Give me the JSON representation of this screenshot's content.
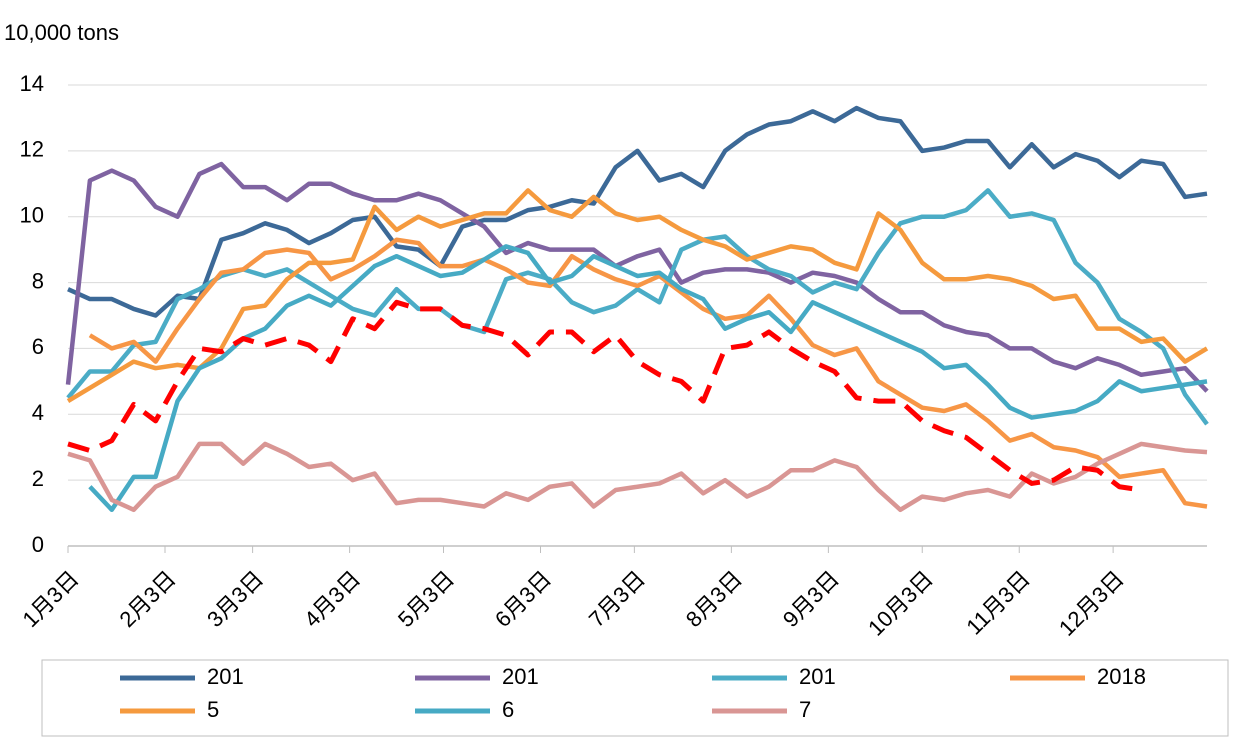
{
  "chart_data": {
    "type": "line",
    "y_label": "10,000 tons",
    "x": [
      0,
      7,
      14,
      21,
      28,
      35,
      42,
      49,
      56,
      63,
      70,
      77,
      84,
      91,
      98,
      105,
      112,
      119,
      126,
      133,
      140,
      147,
      154,
      161,
      168,
      175,
      182,
      189,
      196,
      203,
      210,
      217,
      224,
      231,
      238,
      245,
      252,
      259,
      266,
      273,
      280,
      287,
      294,
      301,
      308,
      315,
      322,
      329,
      336,
      343,
      350,
      357,
      364
    ],
    "xlim": [
      0,
      364
    ],
    "xticks": [
      {
        "value": 0,
        "label": "1月3日"
      },
      {
        "value": 31,
        "label": "2月3日"
      },
      {
        "value": 59,
        "label": "3月3日"
      },
      {
        "value": 90,
        "label": "4月3日"
      },
      {
        "value": 120,
        "label": "5月3日"
      },
      {
        "value": 151,
        "label": "6月3日"
      },
      {
        "value": 181,
        "label": "7月3日"
      },
      {
        "value": 212,
        "label": "8月3日"
      },
      {
        "value": 243,
        "label": "9月3日"
      },
      {
        "value": 273,
        "label": "10月3日"
      },
      {
        "value": 304,
        "label": "11月3日"
      },
      {
        "value": 334,
        "label": "12月3日"
      }
    ],
    "ylim": [
      0,
      14
    ],
    "yticks": [
      0,
      2,
      4,
      6,
      8,
      10,
      12,
      14
    ],
    "series": [
      {
        "name": "201",
        "color": "#3c6997",
        "values": [
          7.8,
          7.5,
          7.5,
          7.2,
          7.0,
          7.6,
          7.5,
          9.3,
          9.5,
          9.8,
          9.6,
          9.2,
          9.5,
          9.9,
          10.0,
          9.1,
          9.0,
          8.5,
          9.7,
          9.9,
          9.9,
          10.2,
          10.3,
          10.5,
          10.4,
          11.5,
          12.0,
          11.1,
          11.3,
          10.9,
          12.0,
          12.5,
          12.8,
          12.9,
          13.2,
          12.9,
          13.3,
          13.0,
          12.9,
          12.0,
          12.1,
          12.3,
          12.3,
          11.5,
          12.2,
          11.5,
          11.9,
          11.7,
          11.2,
          11.7,
          11.6,
          10.6,
          10.7
        ]
      },
      {
        "name": "201",
        "color": "#7f63a1",
        "values": [
          4.9,
          11.1,
          11.4,
          11.1,
          10.3,
          10.0,
          11.3,
          11.6,
          10.9,
          10.9,
          10.5,
          11.0,
          11.0,
          10.7,
          10.5,
          10.5,
          10.7,
          10.5,
          10.1,
          9.7,
          8.9,
          9.2,
          9.0,
          9.0,
          9.0,
          8.5,
          8.8,
          9.0,
          8.0,
          8.3,
          8.4,
          8.4,
          8.3,
          8.0,
          8.3,
          8.2,
          8.0,
          7.5,
          7.1,
          7.1,
          6.7,
          6.5,
          6.4,
          6.0,
          6.0,
          5.6,
          5.4,
          5.7,
          5.5,
          5.2,
          5.3,
          5.4,
          4.7
        ]
      },
      {
        "name": "201",
        "color": "#4bacc6",
        "values": [
          4.5,
          5.3,
          5.3,
          6.1,
          6.2,
          7.5,
          7.8,
          8.2,
          8.4,
          8.2,
          8.4,
          8.0,
          7.6,
          7.2,
          7.0,
          7.8,
          7.2,
          7.2,
          6.7,
          6.5,
          8.1,
          8.3,
          8.1,
          7.4,
          7.1,
          7.3,
          7.8,
          7.4,
          9.0,
          9.3,
          9.4,
          8.8,
          8.4,
          8.2,
          7.7,
          8.0,
          7.8,
          8.9,
          9.8,
          10.0,
          10.0,
          10.2,
          10.8,
          10.0,
          10.1,
          9.9,
          8.6,
          8.0,
          6.9,
          6.5,
          6.0,
          4.6,
          3.7
        ]
      },
      {
        "name": "2018",
        "color": "#f79646",
        "values": [
          null,
          6.4,
          6.0,
          6.2,
          5.6,
          6.6,
          7.5,
          8.3,
          8.4,
          8.9,
          9.0,
          8.9,
          8.1,
          8.4,
          8.8,
          9.3,
          9.2,
          8.5,
          8.5,
          8.7,
          8.4,
          8.0,
          7.9,
          8.8,
          8.4,
          8.1,
          7.9,
          8.2,
          7.7,
          7.2,
          6.9,
          7.0,
          7.6,
          6.9,
          6.1,
          5.8,
          6.0,
          5.0,
          4.6,
          4.2,
          4.1,
          4.3,
          3.8,
          3.2,
          3.4,
          3.0,
          2.9,
          2.7,
          2.1,
          2.2,
          2.3,
          1.3,
          1.2
        ]
      },
      {
        "name": "5",
        "color": "#f59a3e",
        "values": [
          4.4,
          4.8,
          5.2,
          5.6,
          5.4,
          5.5,
          5.4,
          6.0,
          7.2,
          7.3,
          8.1,
          8.6,
          8.6,
          8.7,
          10.3,
          9.6,
          10.0,
          9.7,
          9.9,
          10.1,
          10.1,
          10.8,
          10.2,
          10.0,
          10.6,
          10.1,
          9.9,
          10.0,
          9.6,
          9.3,
          9.1,
          8.7,
          8.9,
          9.1,
          9.0,
          8.6,
          8.4,
          10.1,
          9.6,
          8.6,
          8.1,
          8.1,
          8.2,
          8.1,
          7.9,
          7.5,
          7.6,
          6.6,
          6.6,
          6.2,
          6.3,
          5.6,
          6.0
        ]
      },
      {
        "name": "6",
        "color": "#46aac4",
        "values": [
          null,
          1.8,
          1.1,
          2.1,
          2.1,
          4.4,
          5.4,
          5.7,
          6.3,
          6.6,
          7.3,
          7.6,
          7.3,
          7.9,
          8.5,
          8.8,
          8.5,
          8.2,
          8.3,
          8.7,
          9.1,
          8.9,
          8.0,
          8.2,
          8.8,
          8.5,
          8.2,
          8.3,
          7.8,
          7.5,
          6.6,
          6.9,
          7.1,
          6.5,
          7.4,
          7.1,
          6.8,
          6.5,
          6.2,
          5.9,
          5.4,
          5.5,
          4.9,
          4.2,
          3.9,
          4.0,
          4.1,
          4.4,
          5.0,
          4.7,
          4.8,
          4.9,
          5.0
        ]
      },
      {
        "name": "7",
        "color": "#d99694",
        "values": [
          2.8,
          2.6,
          1.4,
          1.1,
          1.8,
          2.1,
          3.1,
          3.1,
          2.5,
          3.1,
          2.8,
          2.4,
          2.5,
          2.0,
          2.2,
          1.3,
          1.4,
          1.4,
          1.3,
          1.2,
          1.6,
          1.4,
          1.8,
          1.9,
          1.2,
          1.7,
          1.8,
          1.9,
          2.2,
          1.6,
          2.0,
          1.5,
          1.8,
          2.3,
          2.3,
          2.6,
          2.4,
          1.7,
          1.1,
          1.5,
          1.4,
          1.6,
          1.7,
          1.5,
          2.2,
          1.9,
          2.1,
          2.5,
          2.8,
          3.1,
          3.0,
          2.9,
          2.85
        ]
      },
      {
        "color": "#ff0000",
        "dashed": true,
        "values": [
          3.1,
          2.9,
          3.2,
          4.3,
          3.8,
          5.0,
          6.0,
          5.9,
          6.3,
          6.1,
          6.3,
          6.1,
          5.6,
          6.9,
          6.6,
          7.4,
          7.2,
          7.2,
          6.7,
          6.6,
          6.4,
          5.8,
          6.5,
          6.5,
          5.9,
          6.4,
          5.6,
          5.2,
          5.0,
          4.4,
          6.0,
          6.1,
          6.5,
          6.0,
          5.6,
          5.3,
          4.5,
          4.4,
          4.4,
          3.8,
          3.5,
          3.3,
          2.8,
          2.3,
          1.9,
          2.0,
          2.4,
          2.3,
          1.8,
          1.7,
          null,
          null,
          null
        ]
      }
    ],
    "grid": true
  }
}
